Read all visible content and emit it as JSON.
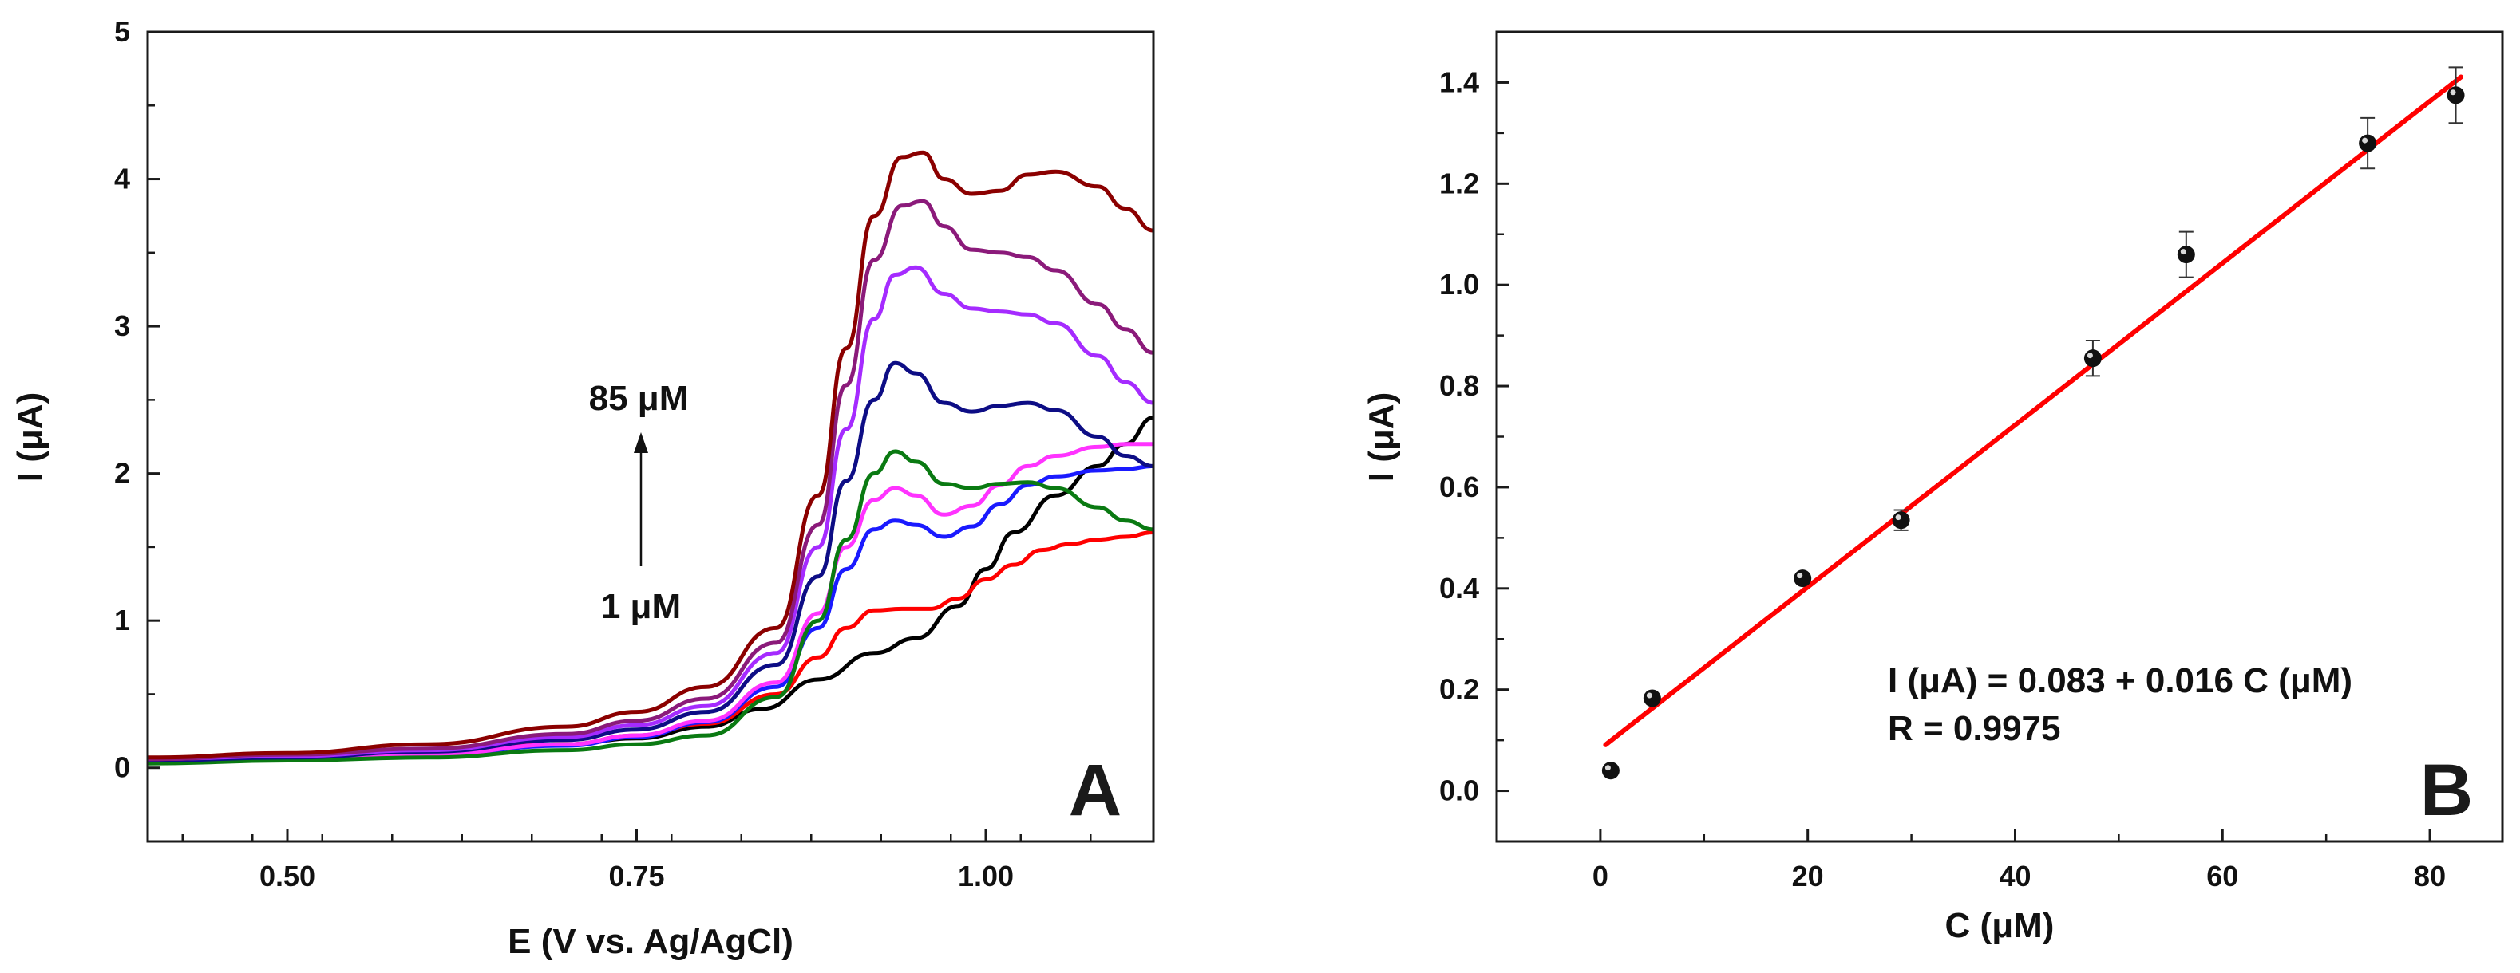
{
  "chart_data": [
    {
      "type": "line",
      "panel_label": "A",
      "xlabel": "E (V vs. Ag/AgCl)",
      "ylabel": "I (μA)",
      "xlim": [
        0.4,
        1.12
      ],
      "ylim": [
        -0.5,
        5
      ],
      "xticks": [
        0.5,
        0.75,
        1.0
      ],
      "xtick_labels": [
        "0.50",
        "0.75",
        "1.00"
      ],
      "yticks": [
        0,
        1,
        2,
        3,
        4,
        5
      ],
      "ytick_labels": [
        "0",
        "1",
        "2",
        "3",
        "4",
        "5"
      ],
      "grid": false,
      "annotations": {
        "top_label": "85 μM",
        "bottom_label": "1 μM",
        "arrow": "up"
      },
      "series": [
        {
          "color": "#000000",
          "x": [
            0.4,
            0.5,
            0.6,
            0.7,
            0.75,
            0.8,
            0.84,
            0.88,
            0.92,
            0.95,
            0.98,
            1.0,
            1.02,
            1.05,
            1.08,
            1.1,
            1.12
          ],
          "y": [
            0.05,
            0.07,
            0.1,
            0.16,
            0.2,
            0.28,
            0.4,
            0.6,
            0.78,
            0.88,
            1.1,
            1.35,
            1.6,
            1.85,
            2.05,
            2.2,
            2.38
          ]
        },
        {
          "color": "#ff0000",
          "x": [
            0.4,
            0.5,
            0.6,
            0.7,
            0.75,
            0.8,
            0.85,
            0.88,
            0.9,
            0.92,
            0.94,
            0.96,
            0.98,
            1.0,
            1.02,
            1.04,
            1.06,
            1.08,
            1.1,
            1.12
          ],
          "y": [
            0.05,
            0.07,
            0.1,
            0.16,
            0.22,
            0.3,
            0.5,
            0.75,
            0.95,
            1.07,
            1.08,
            1.08,
            1.15,
            1.28,
            1.38,
            1.48,
            1.52,
            1.55,
            1.57,
            1.6
          ]
        },
        {
          "color": "#1a1aff",
          "x": [
            0.4,
            0.5,
            0.6,
            0.7,
            0.75,
            0.8,
            0.85,
            0.88,
            0.9,
            0.92,
            0.935,
            0.95,
            0.97,
            0.99,
            1.01,
            1.03,
            1.05,
            1.08,
            1.1,
            1.12
          ],
          "y": [
            0.04,
            0.06,
            0.09,
            0.15,
            0.21,
            0.31,
            0.55,
            0.95,
            1.35,
            1.62,
            1.68,
            1.65,
            1.57,
            1.64,
            1.79,
            1.92,
            1.98,
            2.02,
            2.03,
            2.05
          ]
        },
        {
          "color": "#ff33ff",
          "x": [
            0.4,
            0.5,
            0.6,
            0.7,
            0.75,
            0.8,
            0.85,
            0.88,
            0.9,
            0.92,
            0.935,
            0.95,
            0.97,
            0.99,
            1.01,
            1.03,
            1.05,
            1.08,
            1.1,
            1.12
          ],
          "y": [
            0.04,
            0.06,
            0.09,
            0.16,
            0.22,
            0.32,
            0.58,
            1.05,
            1.5,
            1.82,
            1.9,
            1.85,
            1.72,
            1.78,
            1.92,
            2.05,
            2.12,
            2.18,
            2.2,
            2.2
          ]
        },
        {
          "color": "#0a7a12",
          "x": [
            0.4,
            0.5,
            0.6,
            0.7,
            0.75,
            0.8,
            0.85,
            0.88,
            0.9,
            0.92,
            0.935,
            0.95,
            0.97,
            0.99,
            1.01,
            1.03,
            1.05,
            1.08,
            1.1,
            1.12
          ],
          "y": [
            0.03,
            0.05,
            0.07,
            0.12,
            0.16,
            0.22,
            0.48,
            1.0,
            1.55,
            2.0,
            2.15,
            2.08,
            1.93,
            1.9,
            1.93,
            1.94,
            1.9,
            1.77,
            1.68,
            1.62
          ]
        },
        {
          "color": "#0d0d85",
          "x": [
            0.4,
            0.5,
            0.6,
            0.7,
            0.75,
            0.8,
            0.85,
            0.88,
            0.9,
            0.92,
            0.935,
            0.95,
            0.97,
            0.99,
            1.01,
            1.03,
            1.05,
            1.08,
            1.1,
            1.12
          ],
          "y": [
            0.05,
            0.07,
            0.11,
            0.19,
            0.26,
            0.38,
            0.7,
            1.3,
            1.95,
            2.5,
            2.75,
            2.68,
            2.48,
            2.42,
            2.46,
            2.48,
            2.43,
            2.25,
            2.12,
            2.05
          ]
        },
        {
          "color": "#a52bff",
          "x": [
            0.4,
            0.5,
            0.6,
            0.7,
            0.75,
            0.8,
            0.85,
            0.88,
            0.9,
            0.92,
            0.935,
            0.95,
            0.97,
            0.99,
            1.01,
            1.03,
            1.05,
            1.08,
            1.1,
            1.12
          ],
          "y": [
            0.06,
            0.08,
            0.12,
            0.21,
            0.29,
            0.42,
            0.78,
            1.5,
            2.3,
            3.05,
            3.35,
            3.4,
            3.22,
            3.12,
            3.1,
            3.08,
            3.02,
            2.8,
            2.62,
            2.48
          ]
        },
        {
          "color": "#8b1a7a",
          "x": [
            0.4,
            0.5,
            0.6,
            0.7,
            0.75,
            0.8,
            0.85,
            0.88,
            0.9,
            0.92,
            0.94,
            0.955,
            0.97,
            0.99,
            1.01,
            1.03,
            1.05,
            1.08,
            1.1,
            1.12
          ],
          "y": [
            0.06,
            0.09,
            0.13,
            0.23,
            0.32,
            0.47,
            0.85,
            1.65,
            2.6,
            3.45,
            3.82,
            3.85,
            3.68,
            3.52,
            3.5,
            3.47,
            3.38,
            3.15,
            2.98,
            2.82
          ]
        },
        {
          "color": "#8b0000",
          "x": [
            0.4,
            0.5,
            0.6,
            0.7,
            0.75,
            0.8,
            0.85,
            0.88,
            0.9,
            0.92,
            0.94,
            0.955,
            0.97,
            0.99,
            1.01,
            1.03,
            1.05,
            1.08,
            1.1,
            1.12
          ],
          "y": [
            0.07,
            0.1,
            0.16,
            0.28,
            0.38,
            0.55,
            0.95,
            1.85,
            2.85,
            3.75,
            4.15,
            4.18,
            4.0,
            3.9,
            3.92,
            4.03,
            4.05,
            3.95,
            3.8,
            3.65
          ]
        }
      ]
    },
    {
      "type": "scatter",
      "panel_label": "B",
      "xlabel": "C (μM)",
      "ylabel": "I (μA)",
      "xlim": [
        -10,
        87
      ],
      "ylim": [
        -0.1,
        1.5
      ],
      "xticks": [
        0,
        20,
        40,
        60,
        80
      ],
      "xtick_labels": [
        "0",
        "20",
        "40",
        "60",
        "80"
      ],
      "yticks": [
        0.0,
        0.2,
        0.4,
        0.6,
        0.8,
        1.0,
        1.2,
        1.4
      ],
      "ytick_labels": [
        "0.0",
        "0.2",
        "0.4",
        "0.6",
        "0.8",
        "1.0",
        "1.2",
        "1.4"
      ],
      "grid": false,
      "points": {
        "x": [
          1,
          5,
          19.5,
          29,
          47.5,
          56.5,
          74,
          82.5
        ],
        "y": [
          0.04,
          0.183,
          0.42,
          0.535,
          0.855,
          1.06,
          1.28,
          1.375
        ],
        "err": [
          0.0,
          0.0,
          0.0,
          0.02,
          0.035,
          0.045,
          0.05,
          0.055
        ]
      },
      "fit": {
        "color": "#ff0000",
        "intercept": 0.083,
        "slope": 0.016,
        "x_range": [
          0.5,
          83
        ]
      },
      "equation": "I (μA) = 0.083 + 0.016 C (μM)",
      "r_value": "R = 0.9975"
    }
  ]
}
